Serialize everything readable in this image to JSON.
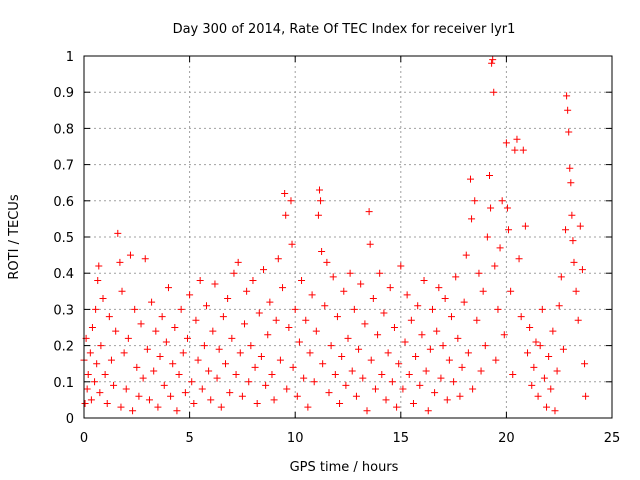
{
  "chart_data": {
    "type": "scatter",
    "title": "Day 300 of 2014, Rate Of TEC Index for receiver lyr1",
    "xlabel": "GPS time / hours",
    "ylabel": "ROTI / TECUs",
    "xlim": [
      0,
      25
    ],
    "ylim": [
      0,
      1
    ],
    "xticks": [
      0,
      5,
      10,
      15,
      20,
      25
    ],
    "xtick_labels": [
      "0",
      "5",
      "10",
      "15",
      "20",
      "25"
    ],
    "yticks": [
      0,
      0.1,
      0.2,
      0.3,
      0.4,
      0.5,
      0.6,
      0.7,
      0.8,
      0.9,
      1
    ],
    "ytick_labels": [
      "0",
      "0.1",
      "0.2",
      "0.3",
      "0.4",
      "0.5",
      "0.6",
      "0.7",
      "0.8",
      "0.9",
      "1"
    ],
    "grid": true,
    "marker": "+",
    "color": "#ff0000",
    "series": [
      {
        "name": "ROTI",
        "points": [
          [
            0.0,
            0.16
          ],
          [
            0.05,
            0.04
          ],
          [
            0.1,
            0.22
          ],
          [
            0.15,
            0.08
          ],
          [
            0.2,
            0.12
          ],
          [
            0.3,
            0.18
          ],
          [
            0.35,
            0.05
          ],
          [
            0.4,
            0.25
          ],
          [
            0.5,
            0.1
          ],
          [
            0.55,
            0.3
          ],
          [
            0.6,
            0.15
          ],
          [
            0.65,
            0.38
          ],
          [
            0.7,
            0.42
          ],
          [
            0.75,
            0.07
          ],
          [
            0.8,
            0.2
          ],
          [
            0.9,
            0.33
          ],
          [
            1.0,
            0.12
          ],
          [
            1.1,
            0.04
          ],
          [
            1.2,
            0.28
          ],
          [
            1.3,
            0.16
          ],
          [
            1.4,
            0.09
          ],
          [
            1.5,
            0.24
          ],
          [
            1.6,
            0.51
          ],
          [
            1.7,
            0.43
          ],
          [
            1.75,
            0.03
          ],
          [
            1.8,
            0.35
          ],
          [
            1.9,
            0.18
          ],
          [
            2.0,
            0.08
          ],
          [
            2.1,
            0.22
          ],
          [
            2.2,
            0.45
          ],
          [
            2.3,
            0.02
          ],
          [
            2.4,
            0.3
          ],
          [
            2.5,
            0.14
          ],
          [
            2.6,
            0.06
          ],
          [
            2.7,
            0.26
          ],
          [
            2.8,
            0.11
          ],
          [
            2.9,
            0.44
          ],
          [
            3.0,
            0.19
          ],
          [
            3.1,
            0.05
          ],
          [
            3.2,
            0.32
          ],
          [
            3.3,
            0.13
          ],
          [
            3.4,
            0.24
          ],
          [
            3.5,
            0.03
          ],
          [
            3.6,
            0.17
          ],
          [
            3.7,
            0.28
          ],
          [
            3.8,
            0.09
          ],
          [
            3.9,
            0.21
          ],
          [
            4.0,
            0.36
          ],
          [
            4.1,
            0.06
          ],
          [
            4.2,
            0.15
          ],
          [
            4.3,
            0.25
          ],
          [
            4.4,
            0.02
          ],
          [
            4.5,
            0.12
          ],
          [
            4.6,
            0.3
          ],
          [
            4.7,
            0.18
          ],
          [
            4.8,
            0.07
          ],
          [
            4.9,
            0.22
          ],
          [
            5.0,
            0.34
          ],
          [
            5.1,
            0.1
          ],
          [
            5.2,
            0.04
          ],
          [
            5.3,
            0.27
          ],
          [
            5.4,
            0.16
          ],
          [
            5.5,
            0.38
          ],
          [
            5.6,
            0.08
          ],
          [
            5.7,
            0.2
          ],
          [
            5.8,
            0.31
          ],
          [
            5.9,
            0.13
          ],
          [
            6.0,
            0.05
          ],
          [
            6.1,
            0.24
          ],
          [
            6.2,
            0.37
          ],
          [
            6.3,
            0.11
          ],
          [
            6.4,
            0.19
          ],
          [
            6.5,
            0.03
          ],
          [
            6.6,
            0.28
          ],
          [
            6.7,
            0.15
          ],
          [
            6.8,
            0.33
          ],
          [
            6.9,
            0.07
          ],
          [
            7.0,
            0.22
          ],
          [
            7.1,
            0.4
          ],
          [
            7.2,
            0.12
          ],
          [
            7.3,
            0.43
          ],
          [
            7.4,
            0.18
          ],
          [
            7.5,
            0.06
          ],
          [
            7.6,
            0.26
          ],
          [
            7.7,
            0.35
          ],
          [
            7.8,
            0.1
          ],
          [
            7.9,
            0.2
          ],
          [
            8.0,
            0.38
          ],
          [
            8.1,
            0.14
          ],
          [
            8.2,
            0.04
          ],
          [
            8.3,
            0.29
          ],
          [
            8.4,
            0.17
          ],
          [
            8.5,
            0.41
          ],
          [
            8.6,
            0.09
          ],
          [
            8.7,
            0.23
          ],
          [
            8.8,
            0.32
          ],
          [
            8.9,
            0.12
          ],
          [
            9.0,
            0.05
          ],
          [
            9.1,
            0.27
          ],
          [
            9.2,
            0.44
          ],
          [
            9.3,
            0.16
          ],
          [
            9.4,
            0.36
          ],
          [
            9.5,
            0.62
          ],
          [
            9.55,
            0.56
          ],
          [
            9.6,
            0.08
          ],
          [
            9.7,
            0.25
          ],
          [
            9.8,
            0.6
          ],
          [
            9.85,
            0.48
          ],
          [
            9.9,
            0.14
          ],
          [
            10.0,
            0.3
          ],
          [
            10.1,
            0.06
          ],
          [
            10.2,
            0.21
          ],
          [
            10.3,
            0.38
          ],
          [
            10.4,
            0.11
          ],
          [
            10.5,
            0.27
          ],
          [
            10.6,
            0.03
          ],
          [
            10.7,
            0.18
          ],
          [
            10.8,
            0.34
          ],
          [
            10.9,
            0.1
          ],
          [
            11.0,
            0.24
          ],
          [
            11.1,
            0.56
          ],
          [
            11.15,
            0.63
          ],
          [
            11.2,
            0.6
          ],
          [
            11.25,
            0.46
          ],
          [
            11.3,
            0.15
          ],
          [
            11.4,
            0.31
          ],
          [
            11.5,
            0.43
          ],
          [
            11.6,
            0.07
          ],
          [
            11.7,
            0.2
          ],
          [
            11.8,
            0.39
          ],
          [
            11.9,
            0.12
          ],
          [
            12.0,
            0.28
          ],
          [
            12.1,
            0.04
          ],
          [
            12.2,
            0.17
          ],
          [
            12.3,
            0.35
          ],
          [
            12.4,
            0.09
          ],
          [
            12.5,
            0.22
          ],
          [
            12.6,
            0.4
          ],
          [
            12.7,
            0.13
          ],
          [
            12.8,
            0.3
          ],
          [
            12.9,
            0.06
          ],
          [
            13.0,
            0.19
          ],
          [
            13.1,
            0.37
          ],
          [
            13.2,
            0.11
          ],
          [
            13.3,
            0.26
          ],
          [
            13.4,
            0.02
          ],
          [
            13.5,
            0.57
          ],
          [
            13.55,
            0.48
          ],
          [
            13.6,
            0.16
          ],
          [
            13.7,
            0.33
          ],
          [
            13.8,
            0.08
          ],
          [
            13.9,
            0.23
          ],
          [
            14.0,
            0.4
          ],
          [
            14.1,
            0.12
          ],
          [
            14.2,
            0.29
          ],
          [
            14.3,
            0.05
          ],
          [
            14.4,
            0.18
          ],
          [
            14.5,
            0.36
          ],
          [
            14.6,
            0.1
          ],
          [
            14.7,
            0.25
          ],
          [
            14.8,
            0.03
          ],
          [
            14.9,
            0.15
          ],
          [
            15.0,
            0.42
          ],
          [
            15.1,
            0.08
          ],
          [
            15.2,
            0.21
          ],
          [
            15.3,
            0.34
          ],
          [
            15.4,
            0.12
          ],
          [
            15.5,
            0.27
          ],
          [
            15.6,
            0.04
          ],
          [
            15.7,
            0.17
          ],
          [
            15.8,
            0.31
          ],
          [
            15.9,
            0.09
          ],
          [
            16.0,
            0.23
          ],
          [
            16.1,
            0.38
          ],
          [
            16.2,
            0.13
          ],
          [
            16.3,
            0.02
          ],
          [
            16.4,
            0.19
          ],
          [
            16.5,
            0.3
          ],
          [
            16.6,
            0.07
          ],
          [
            16.7,
            0.24
          ],
          [
            16.8,
            0.36
          ],
          [
            16.9,
            0.11
          ],
          [
            17.0,
            0.2
          ],
          [
            17.1,
            0.33
          ],
          [
            17.2,
            0.05
          ],
          [
            17.3,
            0.16
          ],
          [
            17.4,
            0.28
          ],
          [
            17.5,
            0.1
          ],
          [
            17.6,
            0.39
          ],
          [
            17.7,
            0.22
          ],
          [
            17.8,
            0.06
          ],
          [
            17.9,
            0.14
          ],
          [
            18.0,
            0.32
          ],
          [
            18.1,
            0.45
          ],
          [
            18.2,
            0.18
          ],
          [
            18.3,
            0.66
          ],
          [
            18.35,
            0.55
          ],
          [
            18.4,
            0.08
          ],
          [
            18.5,
            0.6
          ],
          [
            18.6,
            0.27
          ],
          [
            18.7,
            0.4
          ],
          [
            18.8,
            0.13
          ],
          [
            18.9,
            0.35
          ],
          [
            19.0,
            0.2
          ],
          [
            19.1,
            0.5
          ],
          [
            19.2,
            0.67
          ],
          [
            19.25,
            0.58
          ],
          [
            19.3,
            0.98
          ],
          [
            19.35,
            0.99
          ],
          [
            19.4,
            0.9
          ],
          [
            19.45,
            0.42
          ],
          [
            19.5,
            0.16
          ],
          [
            19.6,
            0.3
          ],
          [
            19.7,
            0.47
          ],
          [
            19.8,
            0.6
          ],
          [
            19.9,
            0.23
          ],
          [
            20.0,
            0.76
          ],
          [
            20.05,
            0.58
          ],
          [
            20.1,
            0.52
          ],
          [
            20.2,
            0.35
          ],
          [
            20.3,
            0.12
          ],
          [
            20.4,
            0.74
          ],
          [
            20.5,
            0.77
          ],
          [
            20.6,
            0.44
          ],
          [
            20.7,
            0.28
          ],
          [
            20.8,
            0.74
          ],
          [
            20.9,
            0.53
          ],
          [
            21.0,
            0.18
          ],
          [
            21.1,
            0.25
          ],
          [
            21.2,
            0.09
          ],
          [
            21.3,
            0.14
          ],
          [
            21.4,
            0.21
          ],
          [
            21.5,
            0.06
          ],
          [
            21.6,
            0.2
          ],
          [
            21.7,
            0.3
          ],
          [
            21.8,
            0.11
          ],
          [
            21.9,
            0.03
          ],
          [
            22.0,
            0.17
          ],
          [
            22.1,
            0.08
          ],
          [
            22.2,
            0.24
          ],
          [
            22.3,
            0.02
          ],
          [
            22.4,
            0.13
          ],
          [
            22.5,
            0.31
          ],
          [
            22.6,
            0.39
          ],
          [
            22.7,
            0.19
          ],
          [
            22.8,
            0.52
          ],
          [
            22.85,
            0.89
          ],
          [
            22.9,
            0.85
          ],
          [
            22.95,
            0.79
          ],
          [
            23.0,
            0.69
          ],
          [
            23.05,
            0.65
          ],
          [
            23.1,
            0.56
          ],
          [
            23.15,
            0.49
          ],
          [
            23.2,
            0.43
          ],
          [
            23.3,
            0.35
          ],
          [
            23.4,
            0.27
          ],
          [
            23.5,
            0.53
          ],
          [
            23.6,
            0.41
          ],
          [
            23.7,
            0.15
          ],
          [
            23.75,
            0.06
          ]
        ]
      }
    ]
  }
}
